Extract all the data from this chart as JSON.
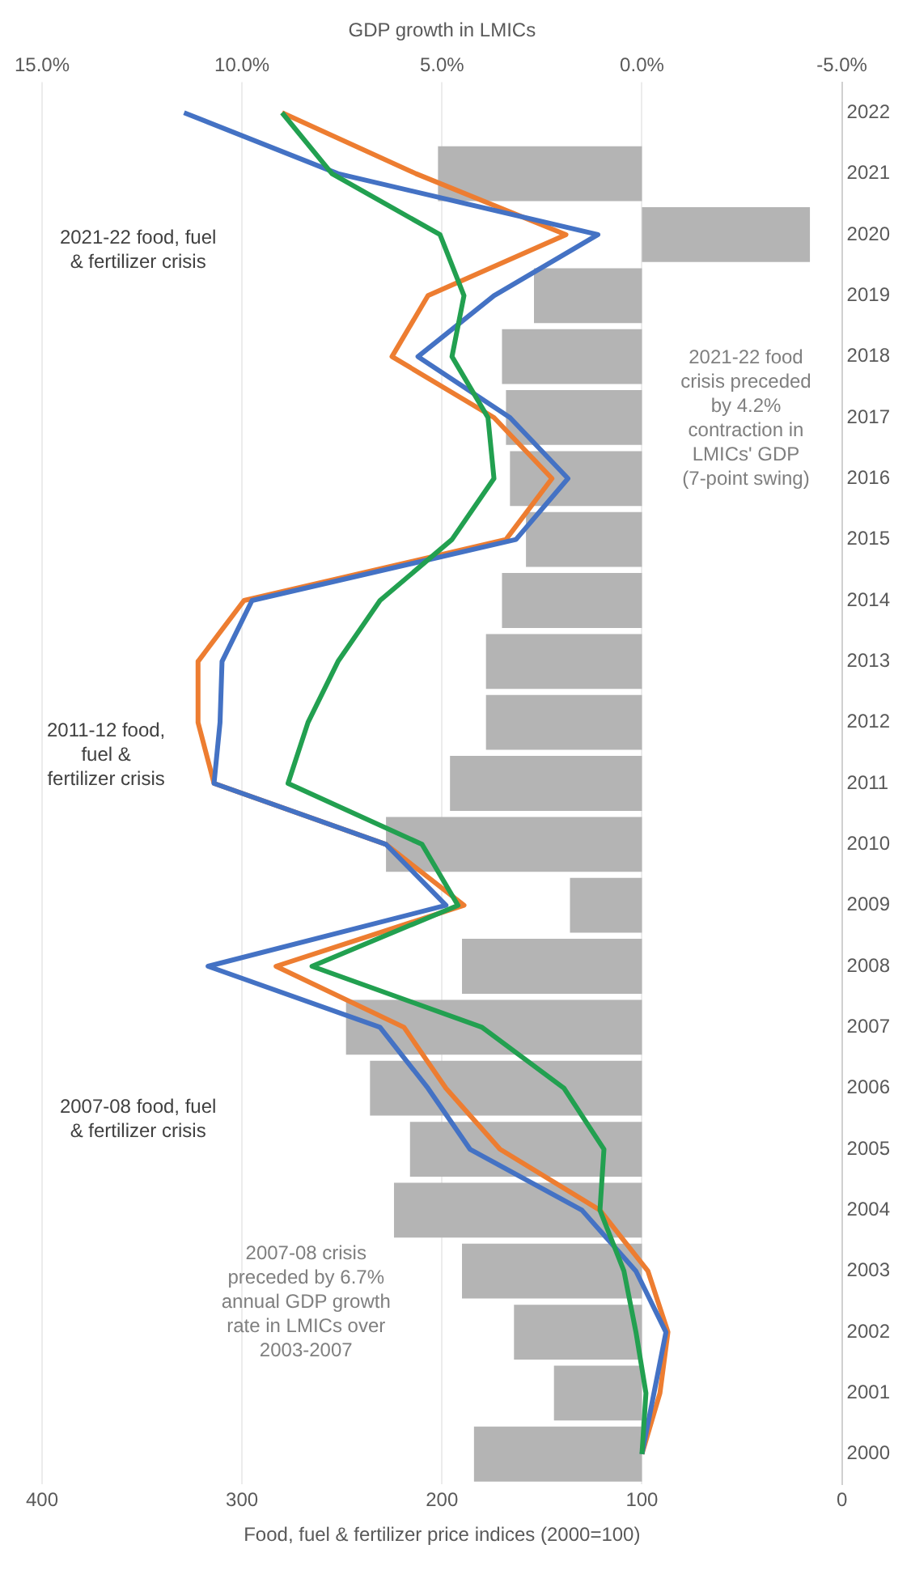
{
  "chart_data": {
    "type": "line",
    "orientation": "horizontal",
    "xlabel": "Food, fuel & fertilizer price indices (2000=100)",
    "x2label": "GDP growth in LMICs",
    "categories": [
      "2022",
      "2021",
      "2020",
      "2019",
      "2018",
      "2017",
      "2016",
      "2015",
      "2014",
      "2013",
      "2012",
      "2011",
      "2010",
      "2009",
      "2008",
      "2007",
      "2006",
      "2005",
      "2004",
      "2003",
      "2002",
      "2001",
      "2000"
    ],
    "series": [
      {
        "type": "bar",
        "axis": "x2",
        "color": "#b4b4b4",
        "values": [
          null,
          5.1,
          -4.2,
          2.7,
          3.5,
          3.4,
          3.3,
          2.9,
          3.5,
          3.9,
          3.9,
          4.8,
          6.4,
          1.8,
          4.5,
          7.4,
          6.8,
          5.8,
          6.2,
          4.5,
          3.2,
          2.2,
          4.2
        ]
      },
      {
        "color": "#22a050",
        "values": [
          280,
          255,
          201,
          189,
          195,
          177,
          174,
          195,
          231,
          252,
          267,
          277,
          210,
          192,
          265,
          180,
          139,
          119,
          121,
          109,
          103,
          98,
          100
        ]
      },
      {
        "color": "#4472c4",
        "values": [
          329,
          252,
          122,
          174,
          212,
          166,
          137,
          163,
          295,
          310,
          311,
          314,
          228,
          198,
          317,
          231,
          207,
          186,
          130,
          103,
          88,
          94,
          100
        ]
      },
      {
        "color": "#ed7d31",
        "values": [
          280,
          213,
          138,
          207,
          225,
          174,
          145,
          168,
          299,
          322,
          322,
          314,
          228,
          189,
          283,
          219,
          198,
          171,
          121,
          97,
          87,
          91,
          100
        ]
      }
    ],
    "xlim": [
      400,
      0
    ],
    "xticks": [
      0,
      100,
      200,
      300,
      400
    ],
    "x2lim": [
      15,
      -5
    ],
    "x2ticks": [
      {
        "value": -5,
        "label": "-5.0%"
      },
      {
        "value": 0,
        "label": "0.0%"
      },
      {
        "value": 5,
        "label": "5.0%"
      },
      {
        "value": 10,
        "label": "10.0%"
      },
      {
        "value": 15,
        "label": "15.0%"
      }
    ],
    "grid": "x",
    "annotations": [
      "2007-08 food, fuel & fertilizer crisis",
      "2011-12 food, fuel & fertilizer crisis",
      "2021-22 food, fuel & fertilizer crisis",
      "2007-08 crisis preceded by 6.7% annual GDP growth rate in LMICs over 2003-2007",
      "2021-22 food crisis preceded by 4.2% contraction in LMICs' GDP (7-point swing)"
    ]
  }
}
